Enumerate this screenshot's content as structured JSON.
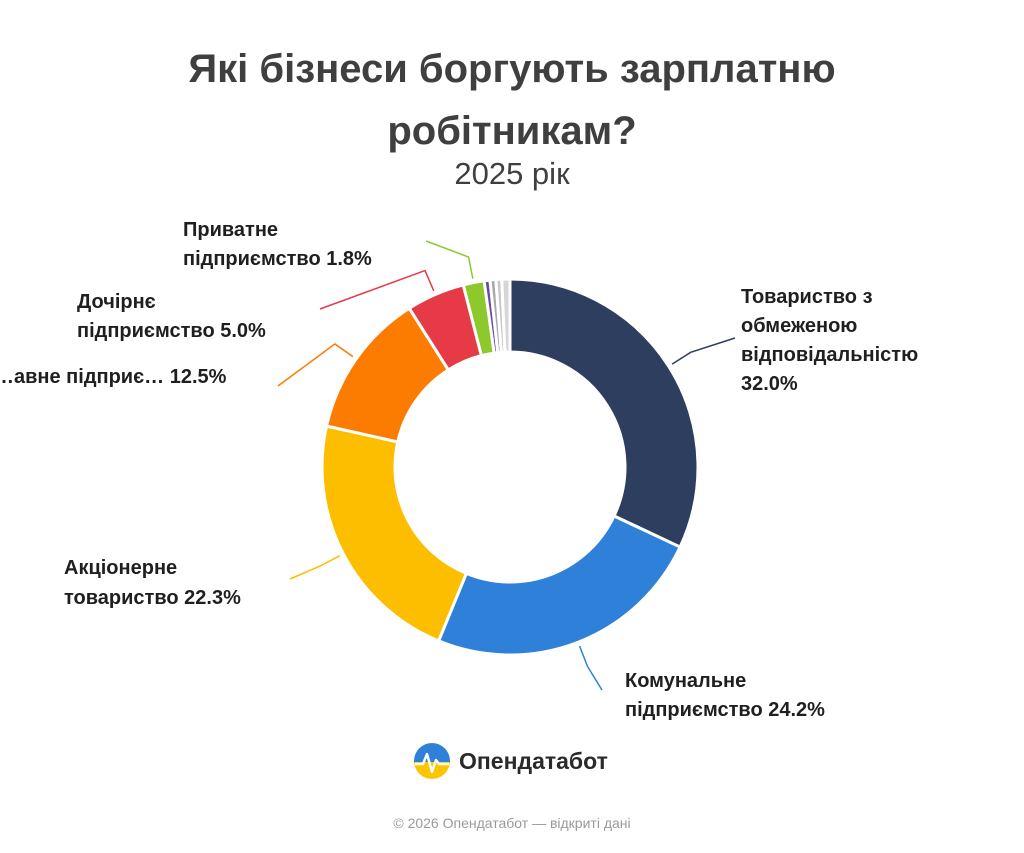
{
  "chart_data": {
    "type": "pie",
    "title": "Які бізнеси боргують зарплатню робітникам?",
    "subtitle": "2025 рік",
    "series": [
      {
        "label": "Товариство з обмеженою відповідальністю 32.0%",
        "value": 32.0,
        "color": "#2e3e5f"
      },
      {
        "label": "Комунальне підприємство 24.2%",
        "value": 24.2,
        "color": "#2f80d8"
      },
      {
        "label": "Акціонерне товариство 22.3%",
        "value": 22.3,
        "color": "#fdbe00"
      },
      {
        "label": "…авне підприє… 12.5%",
        "value": 12.5,
        "color": "#fb7c00"
      },
      {
        "label": "Дочірнє підприємство 5.0%",
        "value": 5.0,
        "color": "#e63a46"
      },
      {
        "label": "Приватне підприємство 1.8%",
        "value": 1.8,
        "color": "#8dc82c"
      },
      {
        "value": 0.5,
        "color": "#6b4c9a"
      },
      {
        "value": 0.5,
        "color": "#a8a8a8"
      },
      {
        "value": 0.5,
        "color": "#c8c8c8"
      },
      {
        "value": 0.7,
        "color": "#d6d6d6"
      }
    ]
  },
  "labels": {
    "tov": [
      "Товариство з",
      "обмеженою",
      "відповідальністю",
      "32.0%"
    ],
    "kom": [
      "Комунальне",
      "підприємство 24.2%"
    ],
    "akc": [
      "Акціонерне",
      "товариство 22.3%"
    ],
    "der": [
      "…авне підприє… 12.5%"
    ],
    "doch": [
      "Дочірнє",
      "підприємство 5.0%"
    ],
    "priv": [
      "Приватне",
      "підприємство 1.8%"
    ]
  },
  "brand": {
    "name": "Опендатабот",
    "icon": "opendatabot-logo-icon"
  },
  "footer": "© 2026 Опендатабот — відкриті дані"
}
